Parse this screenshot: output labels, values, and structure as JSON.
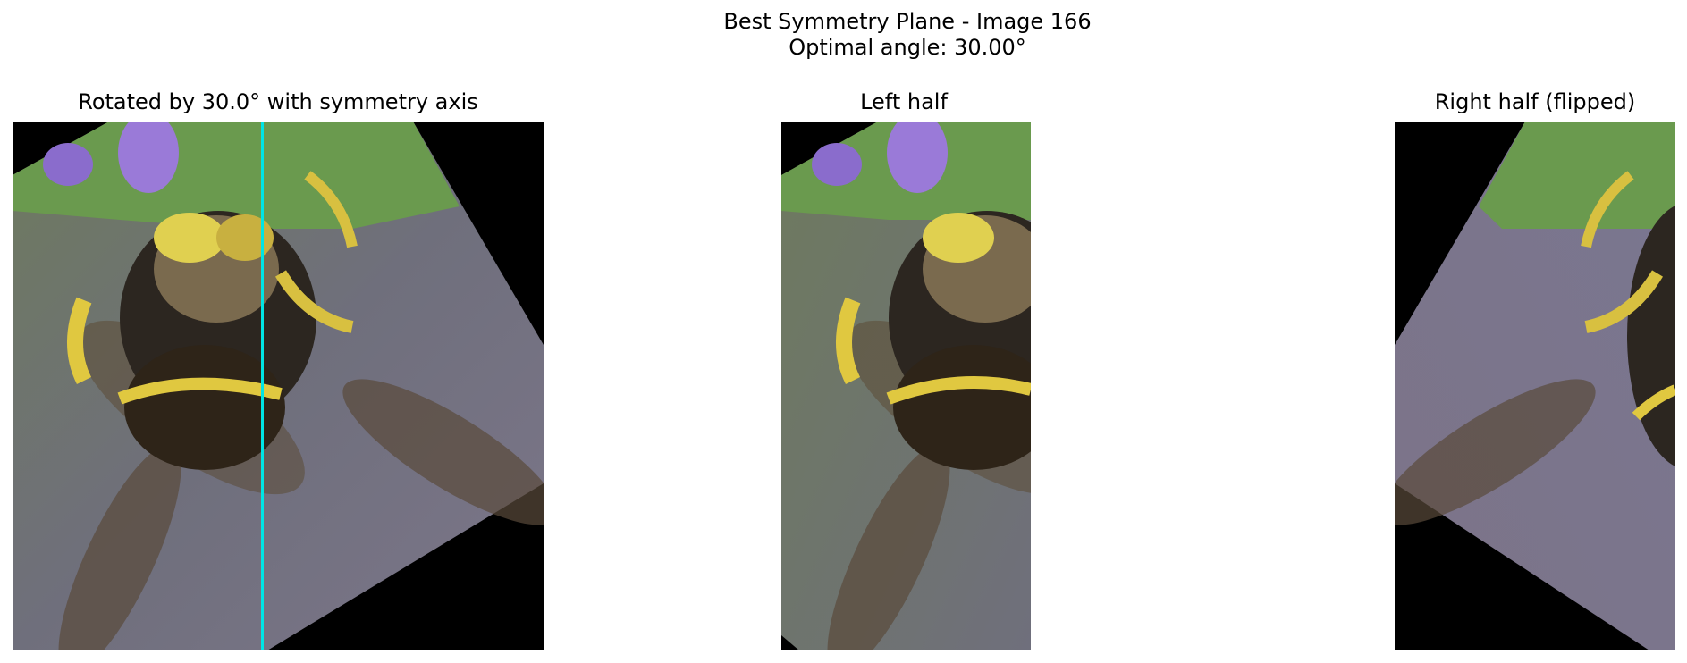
{
  "figure": {
    "title_line1": "Best Symmetry Plane - Image 166",
    "title_line2": "Optimal angle: 30.00°"
  },
  "panels": [
    {
      "title": "Rotated by 30.0° with symmetry axis",
      "image": "rotated-bee-photo"
    },
    {
      "title": "Left half",
      "image": "left-half-bee-photo"
    },
    {
      "title": "Right half (flipped)",
      "image": "right-half-flipped-bee-photo"
    }
  ],
  "colors": {
    "symmetry_axis": "#00e5e5",
    "background_fill": "#000000"
  }
}
